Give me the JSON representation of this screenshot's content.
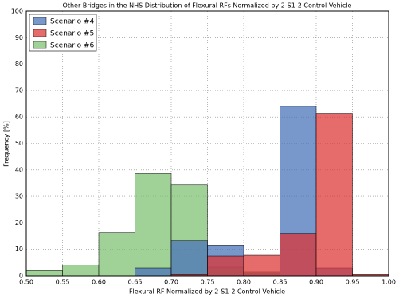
{
  "chart_data": {
    "type": "histogram",
    "title": "Other Bridges in the NHS Distribution of Flexural RFs Normalized by 2-S1-2 Control Vehicle",
    "x_label": "Flexural RF Normalized by 2-S1-2 Control Vehicle",
    "y_label": "Frequency [%]",
    "bins": [
      0.5,
      0.55,
      0.6,
      0.65,
      0.7,
      0.75,
      0.8,
      0.85,
      0.9,
      0.95,
      1.0
    ],
    "series": [
      {
        "name": "Scenario #4",
        "color": "#4470b8",
        "values": [
          0,
          0,
          0,
          3,
          13.3,
          11.6,
          1,
          64,
          3,
          0
        ]
      },
      {
        "name": "Scenario #5",
        "color": "#dc3232",
        "values": [
          0,
          0,
          0,
          0,
          0.5,
          7.5,
          7.8,
          16,
          61.4,
          0.5
        ]
      },
      {
        "name": "Scenario #6",
        "color": "#7cbf6e",
        "values": [
          2,
          4,
          16.3,
          38.6,
          34.3,
          3.3,
          1.5,
          0,
          0,
          0
        ]
      }
    ],
    "xlim": [
      0.5,
      1.0
    ],
    "xticks": [
      {
        "value": 0.5,
        "label": "0.50"
      },
      0.55,
      {
        "value": 0.6,
        "label": "0.60"
      },
      0.65,
      {
        "value": 0.7,
        "label": "0.70"
      },
      0.75,
      {
        "value": 0.8,
        "label": "0.80"
      },
      0.85,
      {
        "value": 0.9,
        "label": "0.90"
      },
      0.95,
      {
        "value": 1.0,
        "label": "1.00"
      }
    ],
    "ylim": [
      0,
      100
    ],
    "yticks": [
      0,
      10,
      20,
      30,
      40,
      50,
      60,
      70,
      80,
      90,
      100
    ],
    "grid": true,
    "legend": "upper-left"
  }
}
